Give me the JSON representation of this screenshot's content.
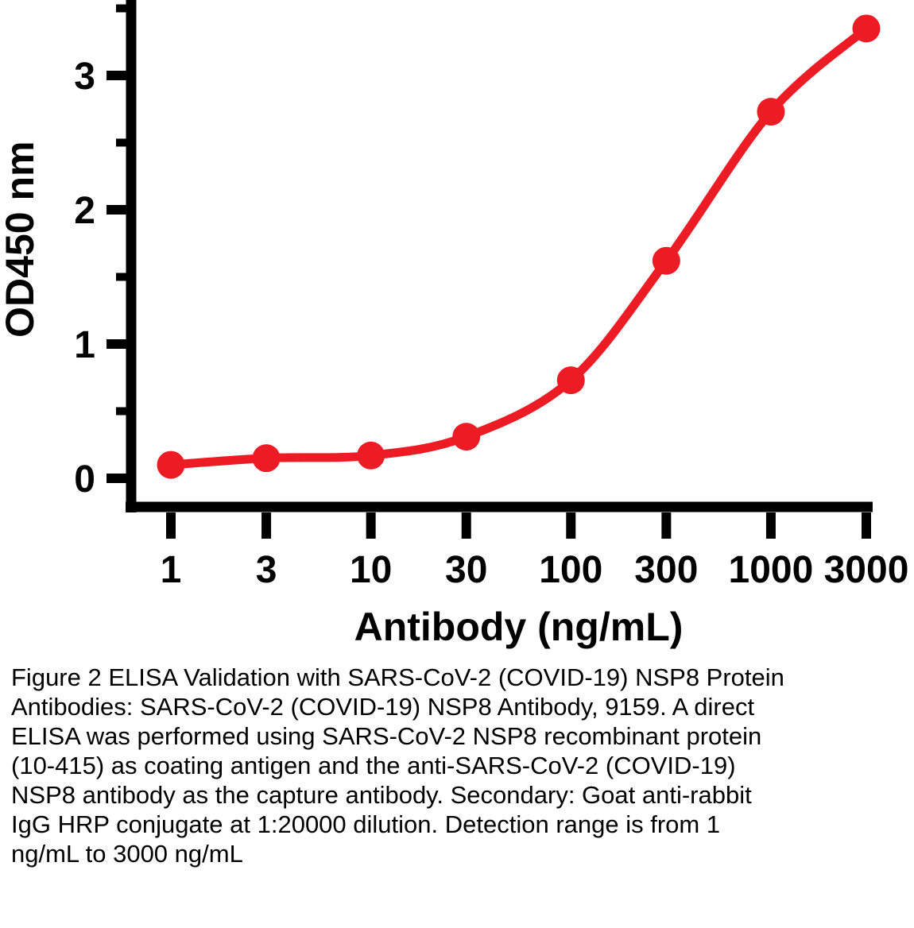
{
  "caption": "Figure 2 ELISA Validation with SARS-CoV-2 (COVID-19) NSP8 Protein Antibodies: SARS-CoV-2 (COVID-19) NSP8 Antibody, 9159. A direct ELISA was performed using SARS-CoV-2 NSP8 recombinant protein (10-415) as coating antigen and the anti-SARS-CoV-2 (COVID-19) NSP8 antibody as the capture antibody. Secondary: Goat anti-rabbit IgG HRP conjugate at 1:20000 dilution. Detection range is from 1 ng/mL to 3000 ng/mL",
  "chart_data": {
    "type": "scatter",
    "title": "",
    "xlabel": "Antibody (ng/mL)",
    "ylabel": "OD450 nm",
    "x_scale": "log",
    "x_ticks": [
      1,
      3,
      10,
      30,
      100,
      300,
      1000,
      3000
    ],
    "x_tick_labels": [
      "1",
      "3",
      "10",
      "30",
      "100",
      "300",
      "1000",
      "3000"
    ],
    "y_ticks": [
      0,
      1,
      2,
      3
    ],
    "y_tick_labels": [
      "0",
      "1",
      "2",
      "3"
    ],
    "y_minor_ticks": [
      0.5,
      1.5,
      2.5,
      3.5
    ],
    "xlim": [
      1,
      3000
    ],
    "ylim": [
      0,
      3.5
    ],
    "grid": false,
    "legend": "none",
    "axis_color": "#000000",
    "series": [
      {
        "color": "#ed1c24",
        "marker": "circle",
        "points": [
          {
            "x": 1,
            "y": 0.1
          },
          {
            "x": 3,
            "y": 0.15
          },
          {
            "x": 10,
            "y": 0.17
          },
          {
            "x": 30,
            "y": 0.31
          },
          {
            "x": 100,
            "y": 0.73
          },
          {
            "x": 300,
            "y": 1.62
          },
          {
            "x": 1000,
            "y": 2.73
          },
          {
            "x": 3000,
            "y": 3.35
          }
        ]
      }
    ]
  }
}
